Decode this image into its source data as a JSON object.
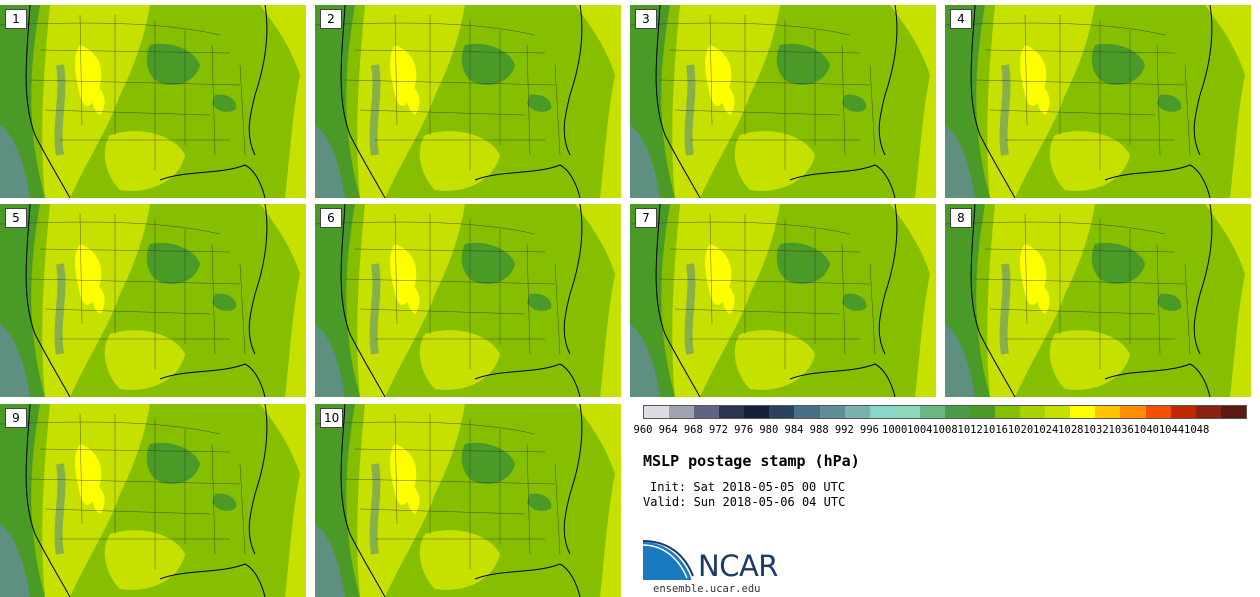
{
  "figure": {
    "title": "MSLP postage stamp (hPa)",
    "init_text": "Init: Sat 2018-05-05 00 UTC",
    "valid_text": "Valid: Sun 2018-05-06 04 UTC",
    "footer_url": "ensemble.ucar.edu",
    "logo_text": "NCAR"
  },
  "members": [
    {
      "label": "1"
    },
    {
      "label": "2"
    },
    {
      "label": "3"
    },
    {
      "label": "4"
    },
    {
      "label": "5"
    },
    {
      "label": "6"
    },
    {
      "label": "7"
    },
    {
      "label": "8"
    },
    {
      "label": "9"
    },
    {
      "label": "10"
    }
  ],
  "colorbar": {
    "unit": "hPa",
    "ticks": [
      "960",
      "964",
      "968",
      "972",
      "976",
      "980",
      "984",
      "988",
      "992",
      "996",
      "1000",
      "1004",
      "1008",
      "1012",
      "1016",
      "1020",
      "1024",
      "1028",
      "1032",
      "1036",
      "1040",
      "1044",
      "1048"
    ],
    "colors": [
      "#dcdde2",
      "#a1a3b0",
      "#5f6580",
      "#2b3550",
      "#15203a",
      "#2a4060",
      "#466f85",
      "#5e8f98",
      "#79b0b0",
      "#8ad6c8",
      "#8cd8b8",
      "#6ab882",
      "#4a9c48",
      "#4a9a28",
      "#86be00",
      "#a8d200",
      "#c6e000",
      "#ffff00",
      "#ffc400",
      "#ff8e00",
      "#f05000",
      "#c02800",
      "#8a2010",
      "#5a1a10"
    ],
    "map_palette": {
      "low": "#4a9a28",
      "mid_low": "#5e8f80",
      "mid": "#86be00",
      "high": "#c6e000",
      "peak": "#ffff00"
    }
  }
}
